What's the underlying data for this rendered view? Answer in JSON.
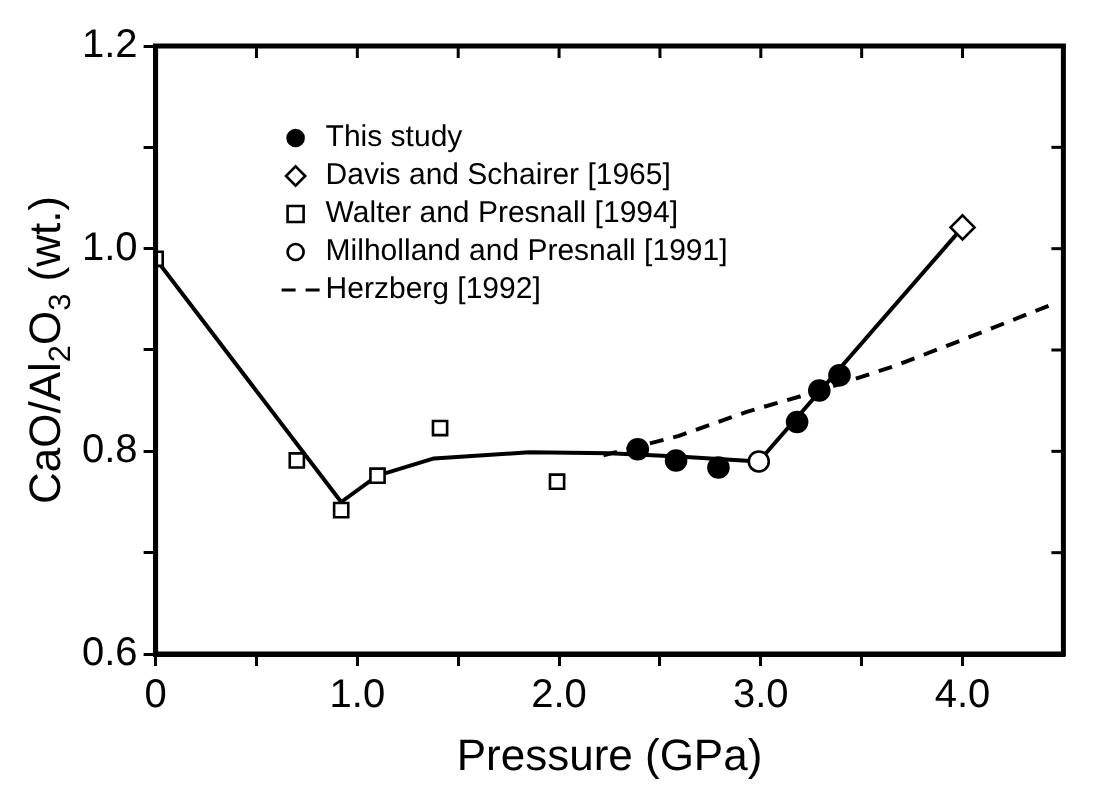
{
  "chart_data": {
    "type": "scatter",
    "xlabel": "Pressure (GPa)",
    "ylabel": "CaO/Al$_{2}$O$_{3}$ (wt.)",
    "xlim": [
      0,
      4.5
    ],
    "xticks": [
      {
        "value": 0,
        "label": "0"
      },
      {
        "value": 0.5,
        "label": null
      },
      {
        "value": 1,
        "label": "1.0"
      },
      {
        "value": 1.5,
        "label": null
      },
      {
        "value": 2,
        "label": "2.0"
      },
      {
        "value": 2.5,
        "label": null
      },
      {
        "value": 3,
        "label": "3.0"
      },
      {
        "value": 3.5,
        "label": null
      },
      {
        "value": 4,
        "label": "4.0"
      }
    ],
    "ylim": [
      0.6,
      1.2
    ],
    "yticks": [
      {
        "value": 0.6,
        "label": "0.6"
      },
      {
        "value": 0.7,
        "label": null
      },
      {
        "value": 0.8,
        "label": "0.8"
      },
      {
        "value": 0.9,
        "label": null
      },
      {
        "value": 1,
        "label": "1.0"
      },
      {
        "value": 1.1,
        "label": null
      },
      {
        "value": 1.2,
        "label": "1.2"
      }
    ],
    "grid": false,
    "legend": "top left",
    "series": [
      {
        "type": "line",
        "color": "#000000",
        "marker": "none",
        "line_style": "solid",
        "x": [
          0,
          0.92,
          1.1,
          1.38,
          1.85,
          2.25,
          2.59,
          2.99,
          4.0
        ],
        "values": [
          0.99,
          0.75,
          0.776,
          0.793,
          0.799,
          0.798,
          0.795,
          0.79,
          1.021
        ]
      },
      {
        "name": "This study",
        "color": "#000000",
        "marker": "circle",
        "x": [
          2.39,
          2.58,
          2.79,
          3.18,
          3.29,
          3.39
        ],
        "values": [
          0.802,
          0.791,
          0.784,
          0.829,
          0.86,
          0.875
        ]
      },
      {
        "name": "Davis and Schairer [1965]",
        "color": "#ffffff",
        "marker": "diamond",
        "x": [
          4.0
        ],
        "values": [
          1.021
        ]
      },
      {
        "name": "Walter and Presnall [1994]",
        "color": "#ffffff",
        "marker": "square",
        "x": [
          0,
          0.7,
          0.92,
          1.1,
          1.41,
          1.99
        ],
        "values": [
          0.99,
          0.791,
          0.742,
          0.776,
          0.823,
          0.77
        ]
      },
      {
        "name": "Milholland and Presnall [1991]",
        "color": "#ffffff",
        "marker": "circle",
        "x": [
          2.99
        ],
        "values": [
          0.79
        ]
      },
      {
        "name": "Herzberg [1992]",
        "type": "line",
        "color": "#000000",
        "marker": "none",
        "line_style": "dashed",
        "x": [
          2.22,
          2.59,
          2.93,
          3.26,
          3.66,
          4.0,
          4.47
        ],
        "values": [
          0.796,
          0.815,
          0.839,
          0.858,
          0.884,
          0.91,
          0.947
        ]
      }
    ]
  }
}
